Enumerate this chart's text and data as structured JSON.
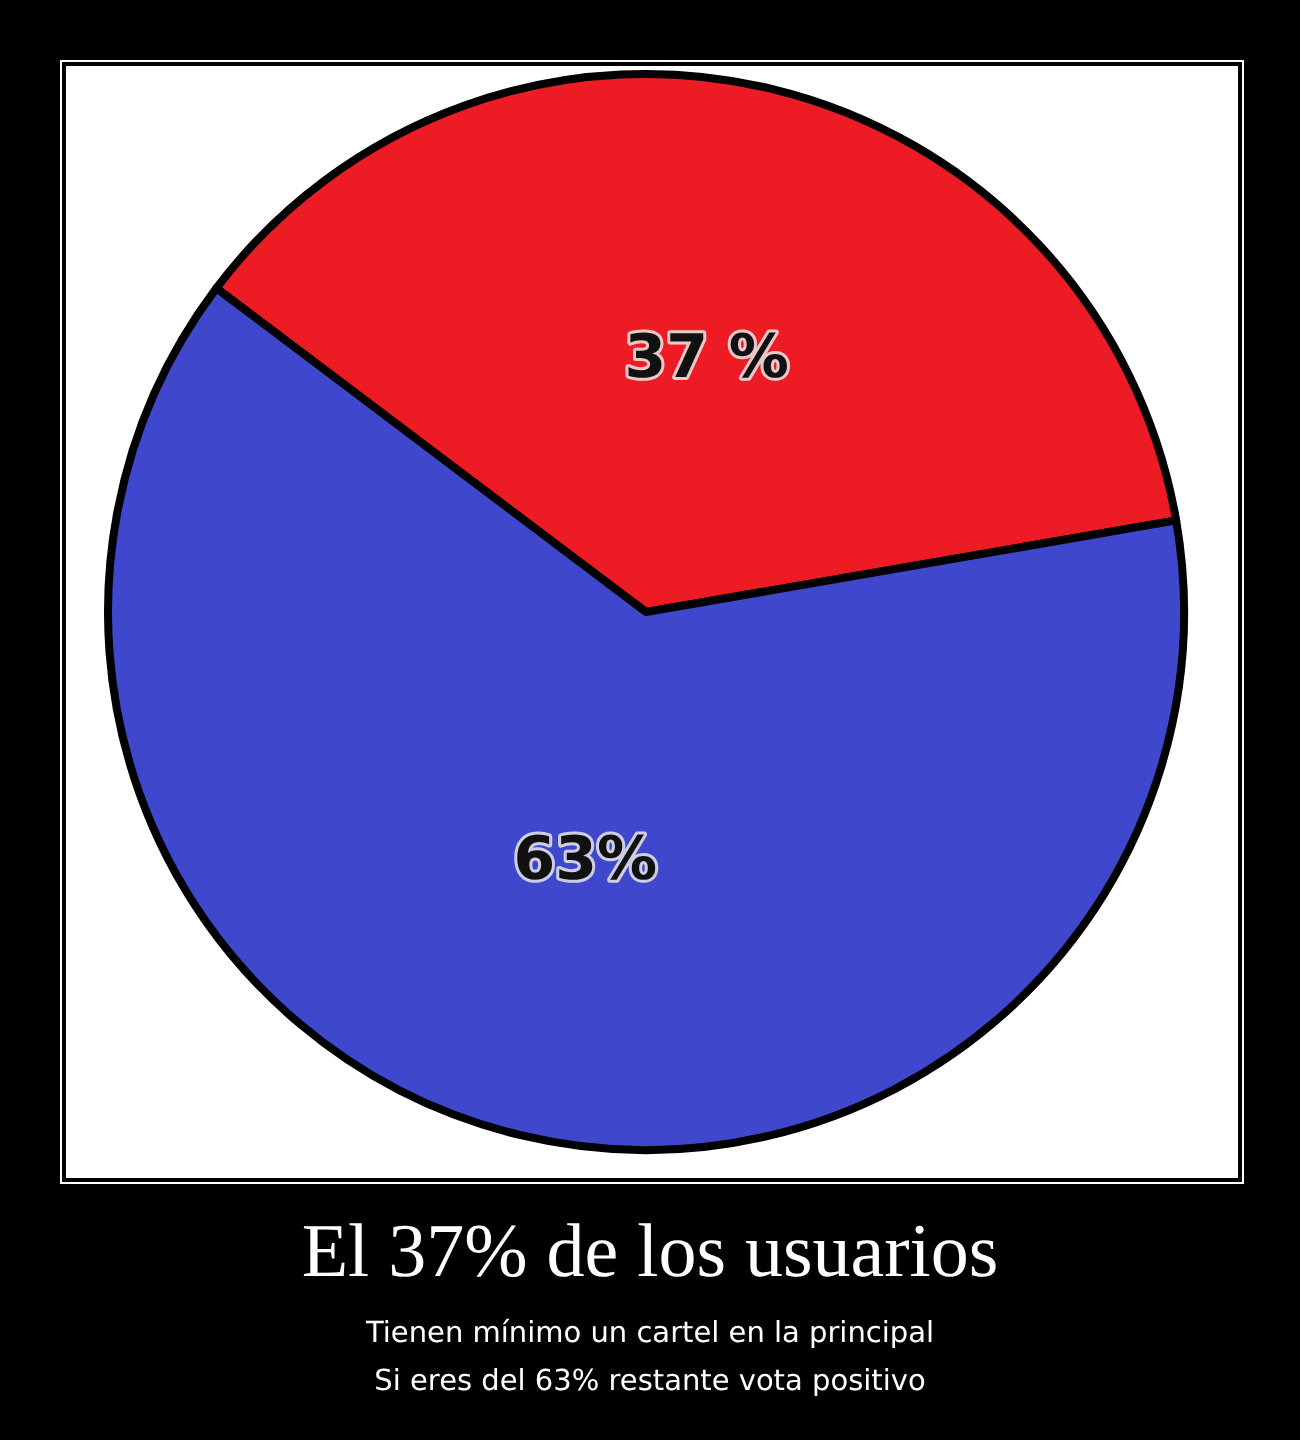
{
  "chart_data": {
    "type": "pie",
    "title": "El 37% de los usuarios",
    "subtitle": "Tienen mínimo un cartel en la principal\nSi eres del 63% restante vota positivo",
    "categories": [
      null,
      null
    ],
    "values": [
      37,
      63
    ],
    "colors": [
      "#ed1c24",
      "#3f48cc"
    ],
    "value_labels": [
      "37 %",
      "63%"
    ]
  }
}
